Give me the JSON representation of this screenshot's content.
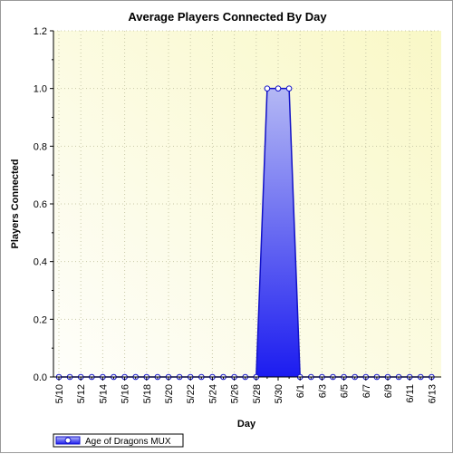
{
  "chart_data": {
    "type": "area",
    "title": "Average Players Connected By Day",
    "xlabel": "Day",
    "ylabel": "Players Connected",
    "ylim": [
      0,
      1.2
    ],
    "y_ticks": [
      "0.0",
      "0.2",
      "0.4",
      "0.6",
      "0.8",
      "1.0",
      "1.2"
    ],
    "x_tick_labels": [
      "5/10",
      "5/12",
      "5/14",
      "5/16",
      "5/18",
      "5/20",
      "5/22",
      "5/24",
      "5/26",
      "5/28",
      "5/30",
      "6/1",
      "6/3",
      "6/5",
      "6/7",
      "6/9",
      "6/11",
      "6/13"
    ],
    "x": [
      "5/10",
      "5/11",
      "5/12",
      "5/13",
      "5/14",
      "5/15",
      "5/16",
      "5/17",
      "5/18",
      "5/19",
      "5/20",
      "5/21",
      "5/22",
      "5/23",
      "5/24",
      "5/25",
      "5/26",
      "5/27",
      "5/28",
      "5/29",
      "5/30",
      "5/31",
      "6/1",
      "6/2",
      "6/3",
      "6/4",
      "6/5",
      "6/6",
      "6/7",
      "6/8",
      "6/9",
      "6/10",
      "6/11",
      "6/12",
      "6/13"
    ],
    "series": [
      {
        "name": "Age of Dragons MUX",
        "values": [
          0,
          0,
          0,
          0,
          0,
          0,
          0,
          0,
          0,
          0,
          0,
          0,
          0,
          0,
          0,
          0,
          0,
          0,
          0,
          1,
          1,
          1,
          0,
          0,
          0,
          0,
          0,
          0,
          0,
          0,
          0,
          0,
          0,
          0,
          0
        ]
      }
    ],
    "grid": true,
    "legend_position": "bottom-left",
    "colors": {
      "series_fill_top": "#b4b8f4",
      "series_fill_bottom": "#1c1cf0",
      "series_line": "#1212c8",
      "plot_bg_light": "#fdfdf6",
      "plot_bg_dark": "#f9f9c8",
      "grid": "#c9c9a8"
    }
  }
}
